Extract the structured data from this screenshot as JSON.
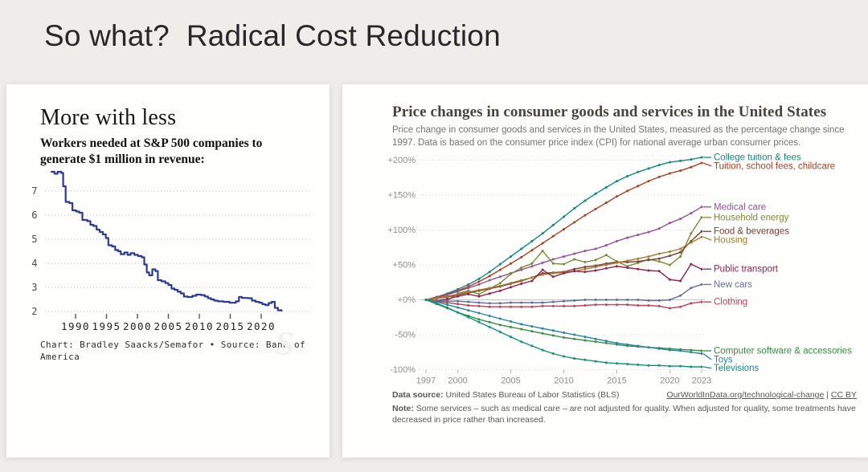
{
  "slide": {
    "title": "So what?  Radical Cost Reduction"
  },
  "left_panel": {
    "title": "More with less",
    "subtitle": "Workers needed at S&P 500 companies to generate $1 million in revenue:",
    "caption": "Chart: Bradley Saacks/Semafor • Source: Bank of America",
    "watermark": "S"
  },
  "right_panel": {
    "title": "Price changes in consumer goods and services in the United States",
    "subtitle": "Price change in consumer goods and services in the United States, measured as the percentage change since 1997. Data is based on the consumer price index (CPI) for national average urban consumer prices.",
    "footer": {
      "datasource_label": "Data source:",
      "datasource_text": " United States Bureau of Labor Statistics (BLS)",
      "link_text": "OurWorldInData.org/technological-change",
      "separator": " | ",
      "license_text": "CC BY",
      "note_label": "Note:",
      "note_text": " Some services – such as medical care – are not adjusted for quality. When adjusted for quality, some treatments have decreased in price rather than increased."
    }
  },
  "chart_data": [
    {
      "type": "line",
      "title": "More with less",
      "subtitle": "Workers needed at S&P 500 companies to generate $1 million in revenue",
      "line_color": "#2b3a96",
      "grid": "dotted-horizontal",
      "ylim": [
        1.85,
        8.1
      ],
      "xlim": [
        1985.6,
        2024.2
      ],
      "yticks": [
        2,
        3,
        4,
        5,
        6,
        7
      ],
      "xticks": [
        1990,
        1995,
        2000,
        2005,
        2010,
        2015,
        2020
      ],
      "points": [
        [
          1986.0,
          7.8
        ],
        [
          1986.6,
          7.72
        ],
        [
          1987.1,
          7.8
        ],
        [
          1987.7,
          7.75
        ],
        [
          1988.0,
          7.2
        ],
        [
          1988.4,
          6.55
        ],
        [
          1989.0,
          6.5
        ],
        [
          1989.5,
          6.2
        ],
        [
          1990.1,
          6.15
        ],
        [
          1990.6,
          6.1
        ],
        [
          1991.1,
          5.8
        ],
        [
          1991.9,
          5.75
        ],
        [
          1992.4,
          5.6
        ],
        [
          1992.9,
          5.55
        ],
        [
          1993.4,
          5.4
        ],
        [
          1993.9,
          5.3
        ],
        [
          1994.4,
          5.2
        ],
        [
          1994.9,
          5.05
        ],
        [
          1995.3,
          4.75
        ],
        [
          1995.9,
          4.7
        ],
        [
          1996.4,
          4.55
        ],
        [
          1996.9,
          4.5
        ],
        [
          1997.3,
          4.38
        ],
        [
          1997.9,
          4.45
        ],
        [
          1998.4,
          4.35
        ],
        [
          1998.9,
          4.42
        ],
        [
          1999.5,
          4.35
        ],
        [
          2000.1,
          4.3
        ],
        [
          2000.7,
          4.25
        ],
        [
          2001.1,
          3.95
        ],
        [
          2001.5,
          3.62
        ],
        [
          2001.9,
          3.5
        ],
        [
          2002.4,
          3.75
        ],
        [
          2002.9,
          3.68
        ],
        [
          2003.3,
          3.3
        ],
        [
          2003.9,
          3.25
        ],
        [
          2004.5,
          3.18
        ],
        [
          2005.0,
          3.1
        ],
        [
          2005.5,
          2.95
        ],
        [
          2006.0,
          2.9
        ],
        [
          2006.5,
          2.82
        ],
        [
          2007.0,
          2.75
        ],
        [
          2007.5,
          2.62
        ],
        [
          2008.1,
          2.6
        ],
        [
          2008.9,
          2.65
        ],
        [
          2009.5,
          2.7
        ],
        [
          2010.3,
          2.68
        ],
        [
          2010.9,
          2.62
        ],
        [
          2011.4,
          2.55
        ],
        [
          2011.9,
          2.5
        ],
        [
          2012.4,
          2.45
        ],
        [
          2013.0,
          2.42
        ],
        [
          2013.9,
          2.4
        ],
        [
          2014.9,
          2.36
        ],
        [
          2015.9,
          2.42
        ],
        [
          2016.4,
          2.6
        ],
        [
          2016.9,
          2.56
        ],
        [
          2017.9,
          2.55
        ],
        [
          2018.5,
          2.45
        ],
        [
          2019.1,
          2.4
        ],
        [
          2019.7,
          2.36
        ],
        [
          2020.2,
          2.3
        ],
        [
          2020.7,
          2.26
        ],
        [
          2021.2,
          2.35
        ],
        [
          2021.7,
          2.4
        ],
        [
          2022.2,
          2.15
        ],
        [
          2022.7,
          2.05
        ],
        [
          2023.3,
          2.0
        ]
      ]
    },
    {
      "type": "line",
      "title": "Price changes in consumer goods and services in the United States",
      "x_start": 1997,
      "x_end": 2023,
      "xticks": [
        1997,
        2000,
        2005,
        2010,
        2015,
        2020,
        2023
      ],
      "yticks": [
        200,
        150,
        100,
        50,
        0,
        -50,
        -100
      ],
      "ylim": [
        -107,
        212
      ],
      "grid": "dotted-horizontal",
      "legend_position": "right-of-line-ends",
      "series": [
        {
          "name": "College tuition & fees",
          "color": "#0f8a7f",
          "values": [
            0,
            4,
            9,
            15,
            22,
            30,
            40,
            51,
            62,
            73,
            84,
            95,
            107,
            119,
            131,
            142,
            152,
            161,
            170,
            177,
            183,
            188,
            193,
            197,
            199,
            201,
            204
          ]
        },
        {
          "name": "Tuition, school fees, childcare",
          "color": "#b13e22",
          "values": [
            0,
            4,
            8,
            13,
            19,
            26,
            34,
            43,
            52,
            61,
            71,
            81,
            91,
            101,
            111,
            121,
            130,
            139,
            148,
            156,
            163,
            170,
            176,
            181,
            185,
            190,
            196
          ]
        },
        {
          "name": "Medical care",
          "color": "#994fa0",
          "values": [
            0,
            3,
            7,
            12,
            17,
            22,
            28,
            33,
            38,
            43,
            48,
            53,
            58,
            62,
            66,
            70,
            73,
            78,
            84,
            89,
            93,
            97,
            102,
            110,
            116,
            124,
            133
          ]
        },
        {
          "name": "Household energy",
          "color": "#788a34",
          "values": [
            0,
            -3,
            -1,
            9,
            13,
            8,
            16,
            24,
            37,
            46,
            52,
            70,
            52,
            51,
            58,
            54,
            57,
            64,
            55,
            48,
            53,
            58,
            55,
            50,
            62,
            95,
            118
          ]
        },
        {
          "name": "Food & beverages",
          "color": "#7d3b33",
          "values": [
            0,
            2,
            4,
            7,
            10,
            13,
            16,
            19,
            23,
            27,
            32,
            38,
            39,
            40,
            44,
            47,
            49,
            52,
            54,
            54,
            55,
            57,
            59,
            63,
            68,
            84,
            98
          ]
        },
        {
          "name": "Housing",
          "color": "#a67c2b",
          "values": [
            0,
            2,
            5,
            8,
            11,
            14,
            17,
            20,
            24,
            28,
            32,
            36,
            38,
            39,
            41,
            44,
            47,
            50,
            53,
            56,
            59,
            62,
            66,
            69,
            73,
            82,
            90
          ]
        },
        {
          "name": "Public transport",
          "color": "#96214b",
          "values": [
            0,
            -1,
            1,
            5,
            8,
            5,
            9,
            13,
            18,
            23,
            27,
            43,
            33,
            38,
            41,
            40,
            42,
            45,
            48,
            46,
            44,
            42,
            41,
            29,
            27,
            51,
            44
          ]
        },
        {
          "name": "New cars",
          "color": "#5f6fa6",
          "values": [
            0,
            -1,
            -2,
            -2,
            -3,
            -4,
            -5,
            -5,
            -4,
            -4,
            -4,
            -4,
            -3,
            -2,
            -1,
            0,
            0,
            0,
            0,
            0,
            0,
            -1,
            -1,
            0,
            6,
            17,
            22
          ]
        },
        {
          "name": "Clothing",
          "color": "#c43f56",
          "values": [
            0,
            -2,
            -4,
            -6,
            -8,
            -9,
            -10,
            -10,
            -10,
            -10,
            -10,
            -9,
            -9,
            -9,
            -9,
            -8,
            -7,
            -7,
            -7,
            -7,
            -8,
            -8,
            -9,
            -12,
            -10,
            -5,
            -3
          ]
        },
        {
          "name": "Computer software & accessories",
          "color": "#358f41",
          "values": [
            0,
            -6,
            -12,
            -18,
            -23,
            -28,
            -32,
            -36,
            -39,
            -42,
            -45,
            -48,
            -51,
            -54,
            -56,
            -58,
            -60,
            -62,
            -64,
            -66,
            -67,
            -68,
            -69,
            -70,
            -71,
            -72,
            -73
          ]
        },
        {
          "name": "Toys",
          "color": "#2384a4",
          "values": [
            0,
            -3,
            -7,
            -11,
            -15,
            -19,
            -23,
            -27,
            -31,
            -35,
            -38,
            -41,
            -44,
            -47,
            -50,
            -53,
            -56,
            -59,
            -62,
            -64,
            -66,
            -68,
            -70,
            -72,
            -73,
            -75,
            -77
          ]
        },
        {
          "name": "Televisions",
          "color": "#10907d",
          "values": [
            0,
            -5,
            -11,
            -18,
            -25,
            -32,
            -39,
            -46,
            -53,
            -60,
            -66,
            -72,
            -77,
            -81,
            -84,
            -86,
            -88,
            -90,
            -91,
            -92,
            -93,
            -94,
            -94,
            -95,
            -95,
            -96,
            -96
          ]
        }
      ]
    }
  ]
}
